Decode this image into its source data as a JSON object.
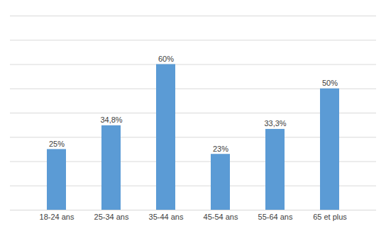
{
  "chart_data": {
    "type": "bar",
    "categories": [
      "18-24 ans",
      "25-34 ans",
      "35-44 ans",
      "45-54 ans",
      "55-64 ans",
      "65 et plus"
    ],
    "values": [
      25,
      34.8,
      60,
      23,
      33.3,
      50
    ],
    "value_labels": [
      "25%",
      "34,8%",
      "60%",
      "23%",
      "33,3%",
      "50%"
    ],
    "color": "#5B9BD5",
    "ylim": [
      0,
      80
    ],
    "yticks": [
      0,
      10,
      20,
      30,
      40,
      50,
      60,
      70,
      80
    ],
    "grid": true,
    "data_labels": true,
    "tick_labels": "x"
  }
}
